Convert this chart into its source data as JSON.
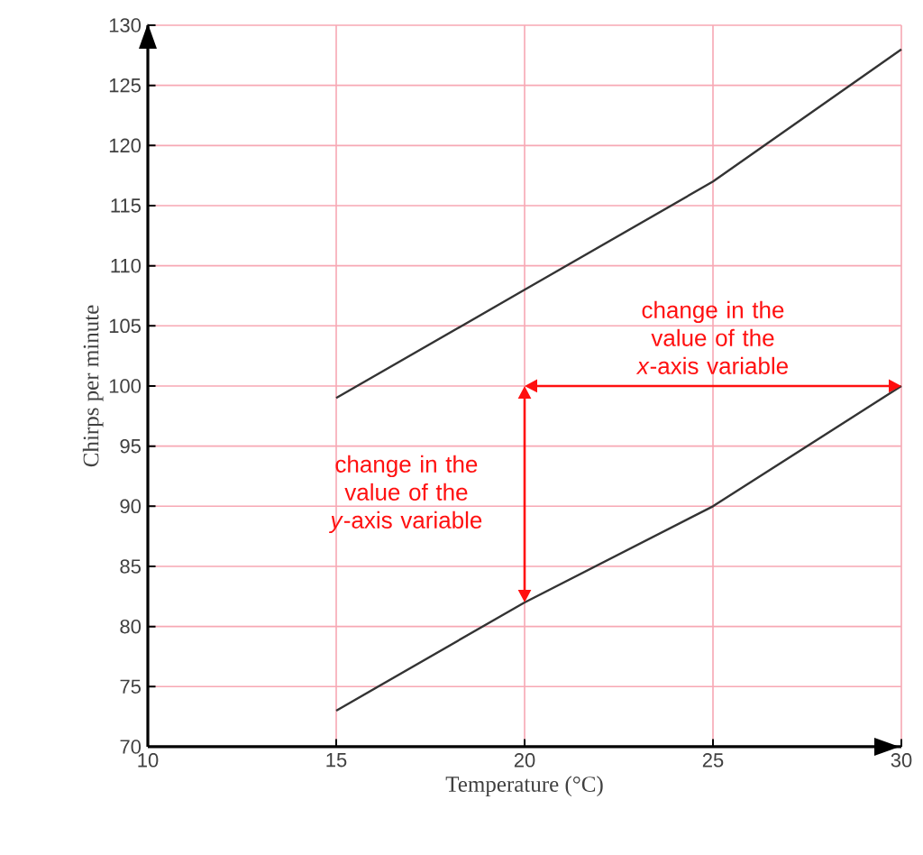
{
  "chart_data": {
    "type": "line",
    "xlabel": "Temperature (°C)",
    "ylabel": "Chirps per minute",
    "series": [
      {
        "color": "#333333",
        "x": [
          15,
          20,
          25,
          30
        ],
        "values": [
          99,
          108,
          117,
          128
        ]
      },
      {
        "color": "#333333",
        "x": [
          15,
          20,
          25,
          30
        ],
        "values": [
          73,
          82,
          90,
          100
        ]
      }
    ],
    "xlim": [
      10,
      30
    ],
    "xticks": [
      10,
      15,
      20,
      25,
      30
    ],
    "ylim": [
      70,
      130
    ],
    "yticks": [
      70,
      75,
      80,
      85,
      90,
      95,
      100,
      105,
      110,
      115,
      120,
      125,
      130
    ],
    "grid": true,
    "marker": "none",
    "line_style": "solid",
    "annotations": [
      "change in the value of the *x*-axis variable",
      "change in the value of the *y*-axis variable"
    ]
  }
}
